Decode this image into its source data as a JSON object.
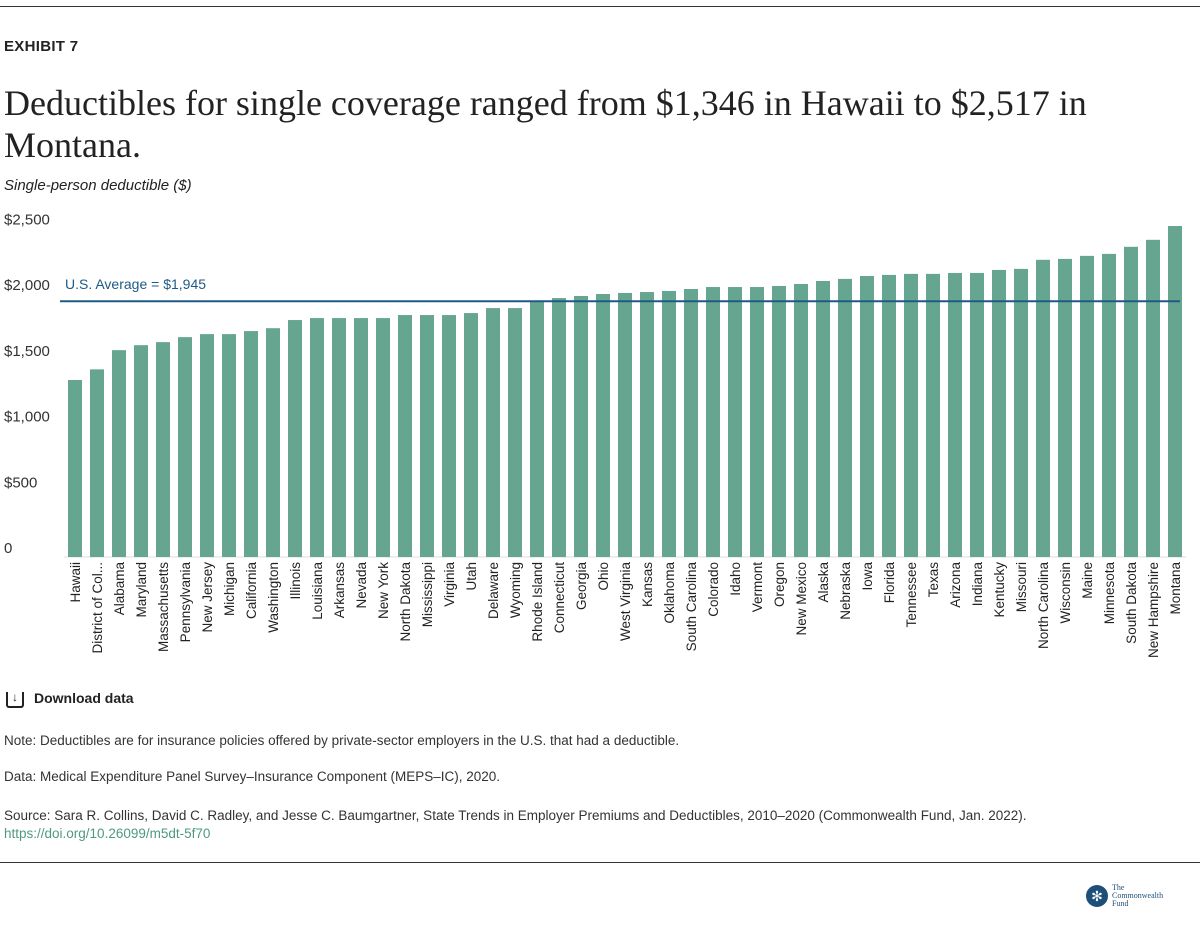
{
  "exhibit": "EXHIBIT 7",
  "title": "Deductibles for single coverage ranged from $1,346 in Hawaii to $2,517 in Montana.",
  "download_label": "Download data",
  "note": "Note: Deductibles are for insurance policies offered by private-sector employers in the U.S. that had a deductible.",
  "data_source": "Data: Medical Expenditure Panel Survey–Insurance Component (MEPS–IC), 2020.",
  "source": "Source: Sara R. Collins, David C. Radley, and Jesse C. Baumgartner, State Trends in Employer Premiums and Deductibles, 2010–2020 (Commonwealth Fund, Jan. 2022).",
  "doi": "https://doi.org/10.26099/m5dt-5f70",
  "logo": {
    "line1": "The",
    "line2": "Commonwealth",
    "line3": "Fund"
  },
  "chart_data": {
    "type": "bar",
    "title": "",
    "xlabel": "",
    "ylabel": "Single-person deductible ($)",
    "ylim": [
      0,
      2500
    ],
    "yticks": [
      0,
      500,
      1000,
      1500,
      2000,
      2500
    ],
    "ytick_labels": [
      "0",
      "$500",
      "$1,000",
      "$1,500",
      "$2,000",
      "$2,500"
    ],
    "grid": false,
    "bar_color": "#66a690",
    "reference_line": {
      "label": "U.S. Average = $1,945",
      "value": 1945,
      "color": "#1f5a85"
    },
    "categories": [
      "Hawaii",
      "District of Col...",
      "Alabama",
      "Maryland",
      "Massachusetts",
      "Pennsylvania",
      "New Jersey",
      "Michigan",
      "California",
      "Washington",
      "Illinois",
      "Louisiana",
      "Arkansas",
      "Nevada",
      "New York",
      "North Dakota",
      "Mississippi",
      "Virginia",
      "Utah",
      "Delaware",
      "Wyoming",
      "Rhode Island",
      "Connecticut",
      "Georgia",
      "Ohio",
      "West Virginia",
      "Kansas",
      "Oklahoma",
      "South Carolina",
      "Colorado",
      "Idaho",
      "Vermont",
      "Oregon",
      "New Mexico",
      "Alaska",
      "Nebraska",
      "Iowa",
      "Florida",
      "Tennessee",
      "Texas",
      "Arizona",
      "Indiana",
      "Kentucky",
      "Missouri",
      "North Carolina",
      "Wisconsin",
      "Maine",
      "Minnesota",
      "South Dakota",
      "New Hampshire",
      "Montana"
    ],
    "values": [
      1346,
      1427,
      1573,
      1611,
      1634,
      1672,
      1695,
      1695,
      1718,
      1740,
      1802,
      1817,
      1817,
      1817,
      1817,
      1840,
      1840,
      1840,
      1855,
      1893,
      1893,
      1947,
      1969,
      1985,
      2000,
      2008,
      2015,
      2023,
      2038,
      2053,
      2053,
      2053,
      2061,
      2076,
      2099,
      2115,
      2137,
      2145,
      2153,
      2153,
      2160,
      2160,
      2183,
      2191,
      2260,
      2267,
      2290,
      2305,
      2359,
      2412,
      2517
    ]
  }
}
